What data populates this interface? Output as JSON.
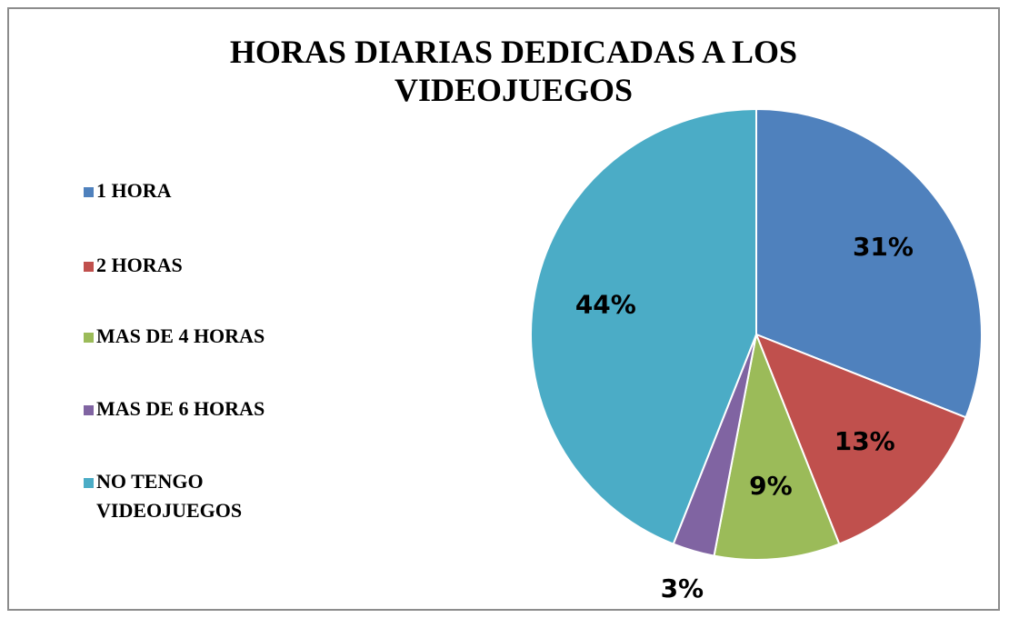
{
  "chart_data": {
    "type": "pie",
    "title": "HORAS DIARIAS DEDICADAS A LOS VIDEOJUEGOS",
    "categories": [
      "1 HORA",
      "2 HORAS",
      "MAS DE 4 HORAS",
      "MAS DE 6 HORAS",
      "NO TENGO VIDEOJUEGOS"
    ],
    "values": [
      31,
      13,
      9,
      3,
      44
    ],
    "value_labels": [
      "31%",
      "13%",
      "9%",
      "3%",
      "44%"
    ],
    "colors": [
      "#4f81bd",
      "#c0504d",
      "#9bbb59",
      "#8064a2",
      "#4bacc6"
    ],
    "legend": "left"
  }
}
